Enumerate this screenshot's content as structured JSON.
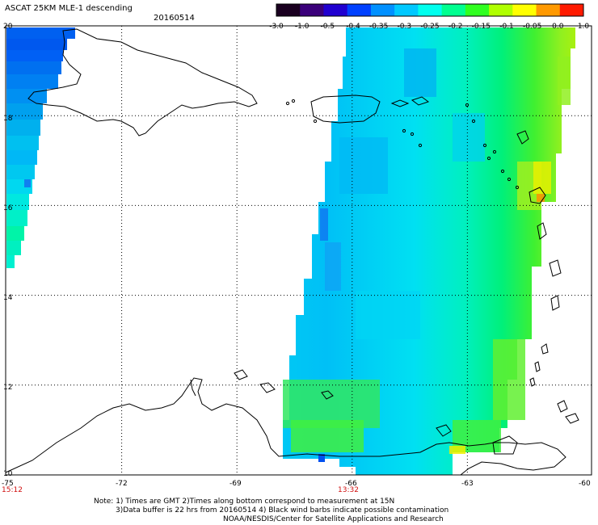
{
  "title": "ASCAT 25KM MLE-1 descending",
  "date": "20160514",
  "colorbar": {
    "labels": [
      "-3.0",
      "-1.0",
      "-0.5",
      "-0.4",
      "-0.35",
      "-0.3",
      "-0.25",
      "-0.2",
      "-0.15",
      "-0.1",
      "-0.05",
      "0.0",
      "1.0"
    ],
    "colors": [
      "#1a0020",
      "#3a007a",
      "#2000d0",
      "#0040ff",
      "#0090ff",
      "#00c8ff",
      "#00ffee",
      "#00ff90",
      "#30ff20",
      "#b0ff00",
      "#ffff00",
      "#ff9900",
      "#ff1a00"
    ]
  },
  "axes": {
    "lon_labels": [
      "-75",
      "-72",
      "-69",
      "-66",
      "-63",
      "-60"
    ],
    "lat_labels": [
      "20",
      "18",
      "16",
      "14",
      "12",
      "10"
    ]
  },
  "pass_times": [
    {
      "lon": -75,
      "time": "15:12"
    },
    {
      "lon": -66,
      "time": "13:32"
    }
  ],
  "notes": {
    "line1": "Note: 1) Times are GMT 2)Times along bottom correspond to measurement at 15N",
    "line2": "3)Data buffer is 22 hrs from 20160514 4) Black wind barbs indicate possible contamination",
    "line3": "NOAA/NESDIS/Center for Satellite Applications and Research"
  }
}
